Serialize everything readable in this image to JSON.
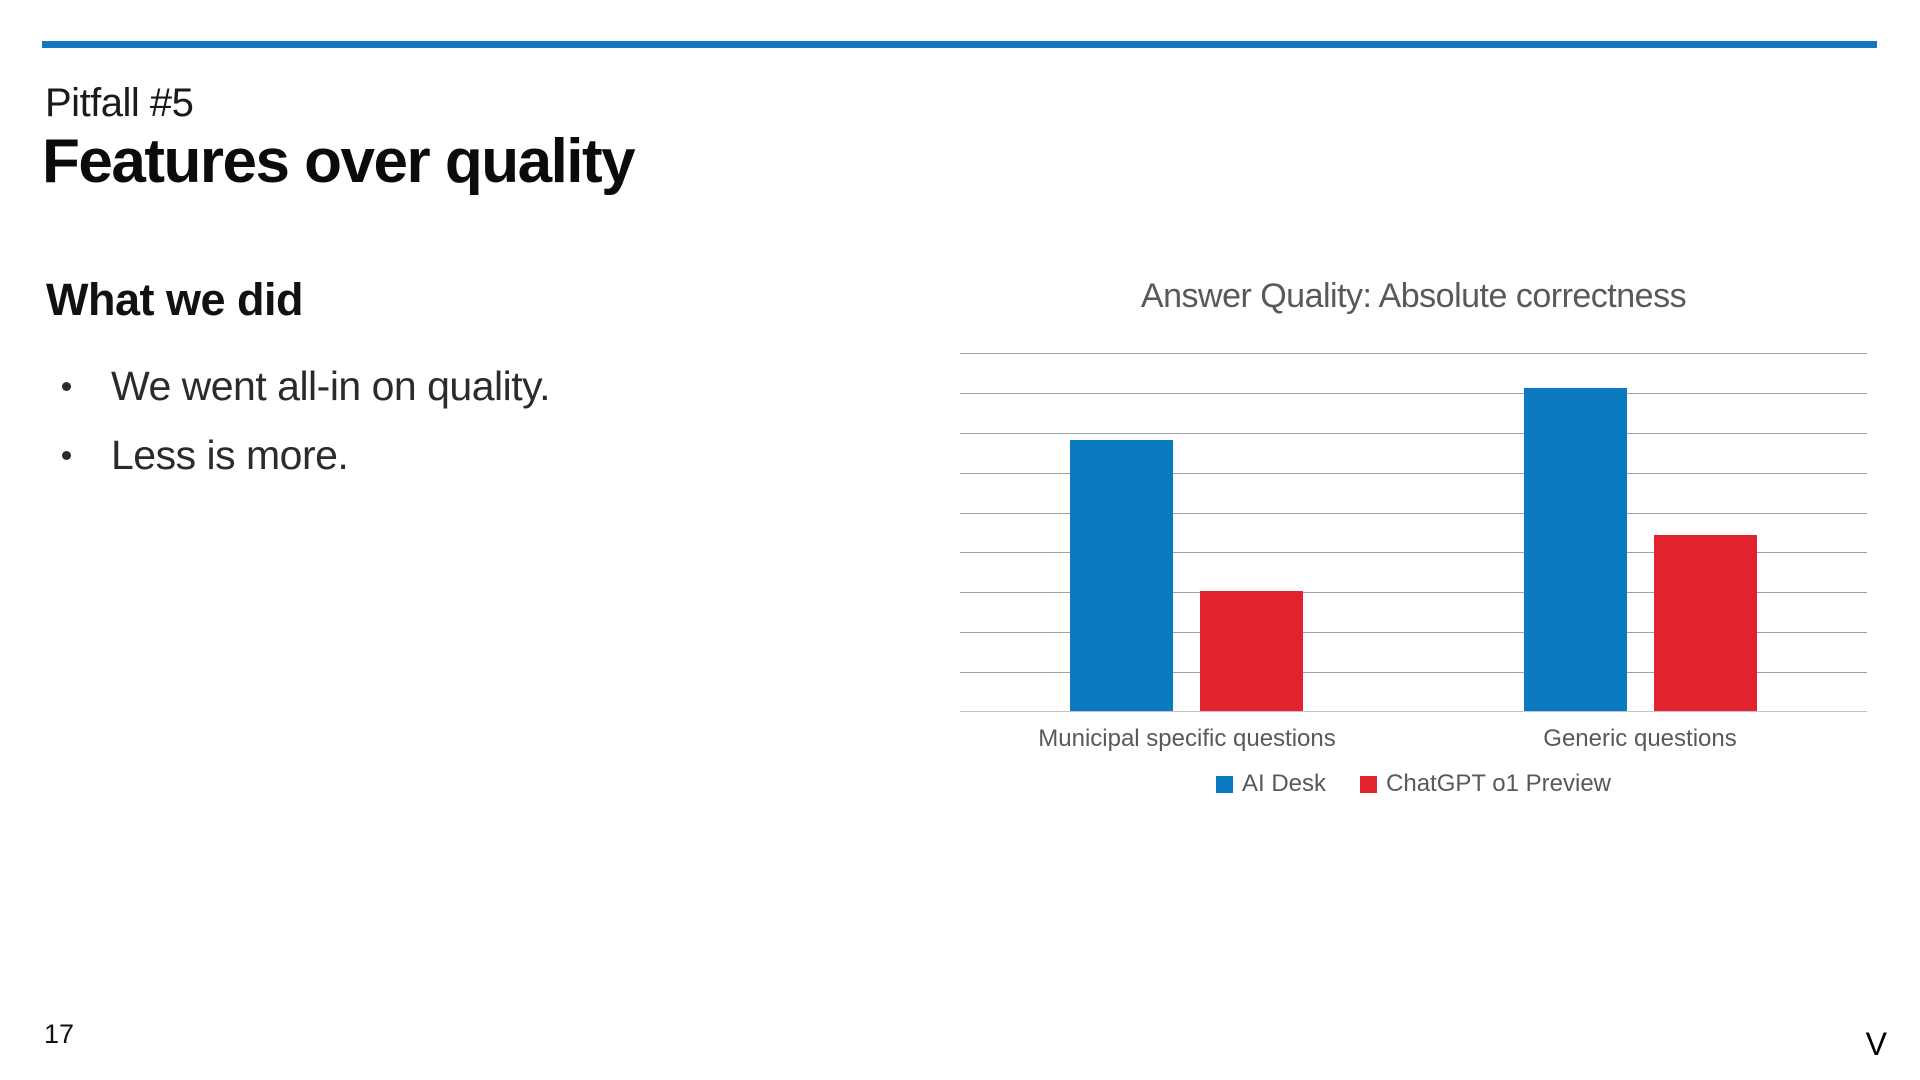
{
  "slide": {
    "kicker": "Pitfall #5",
    "title": "Features over quality",
    "section_heading": "What we did",
    "bullets": [
      "We went all-in on quality.",
      "Less is more."
    ],
    "page_number": "17",
    "logo_letter": "V",
    "accent_color": "#1277bd"
  },
  "chart_data": {
    "type": "bar",
    "title": "Answer Quality: Absolute correctness",
    "categories": [
      "Municipal specific questions",
      "Generic questions"
    ],
    "series": [
      {
        "name": "AI Desk",
        "color": "#0c7ac0",
        "values": [
          68,
          81
        ]
      },
      {
        "name": "ChatGPT o1 Preview",
        "color": "#e2222f",
        "values": [
          30,
          44
        ]
      }
    ],
    "ylim": [
      0,
      90
    ],
    "gridline_step": 10,
    "y_tick_labels_visible": false,
    "grid": true,
    "legend_position": "bottom",
    "title_color": "#595959",
    "label_color": "#595959"
  }
}
